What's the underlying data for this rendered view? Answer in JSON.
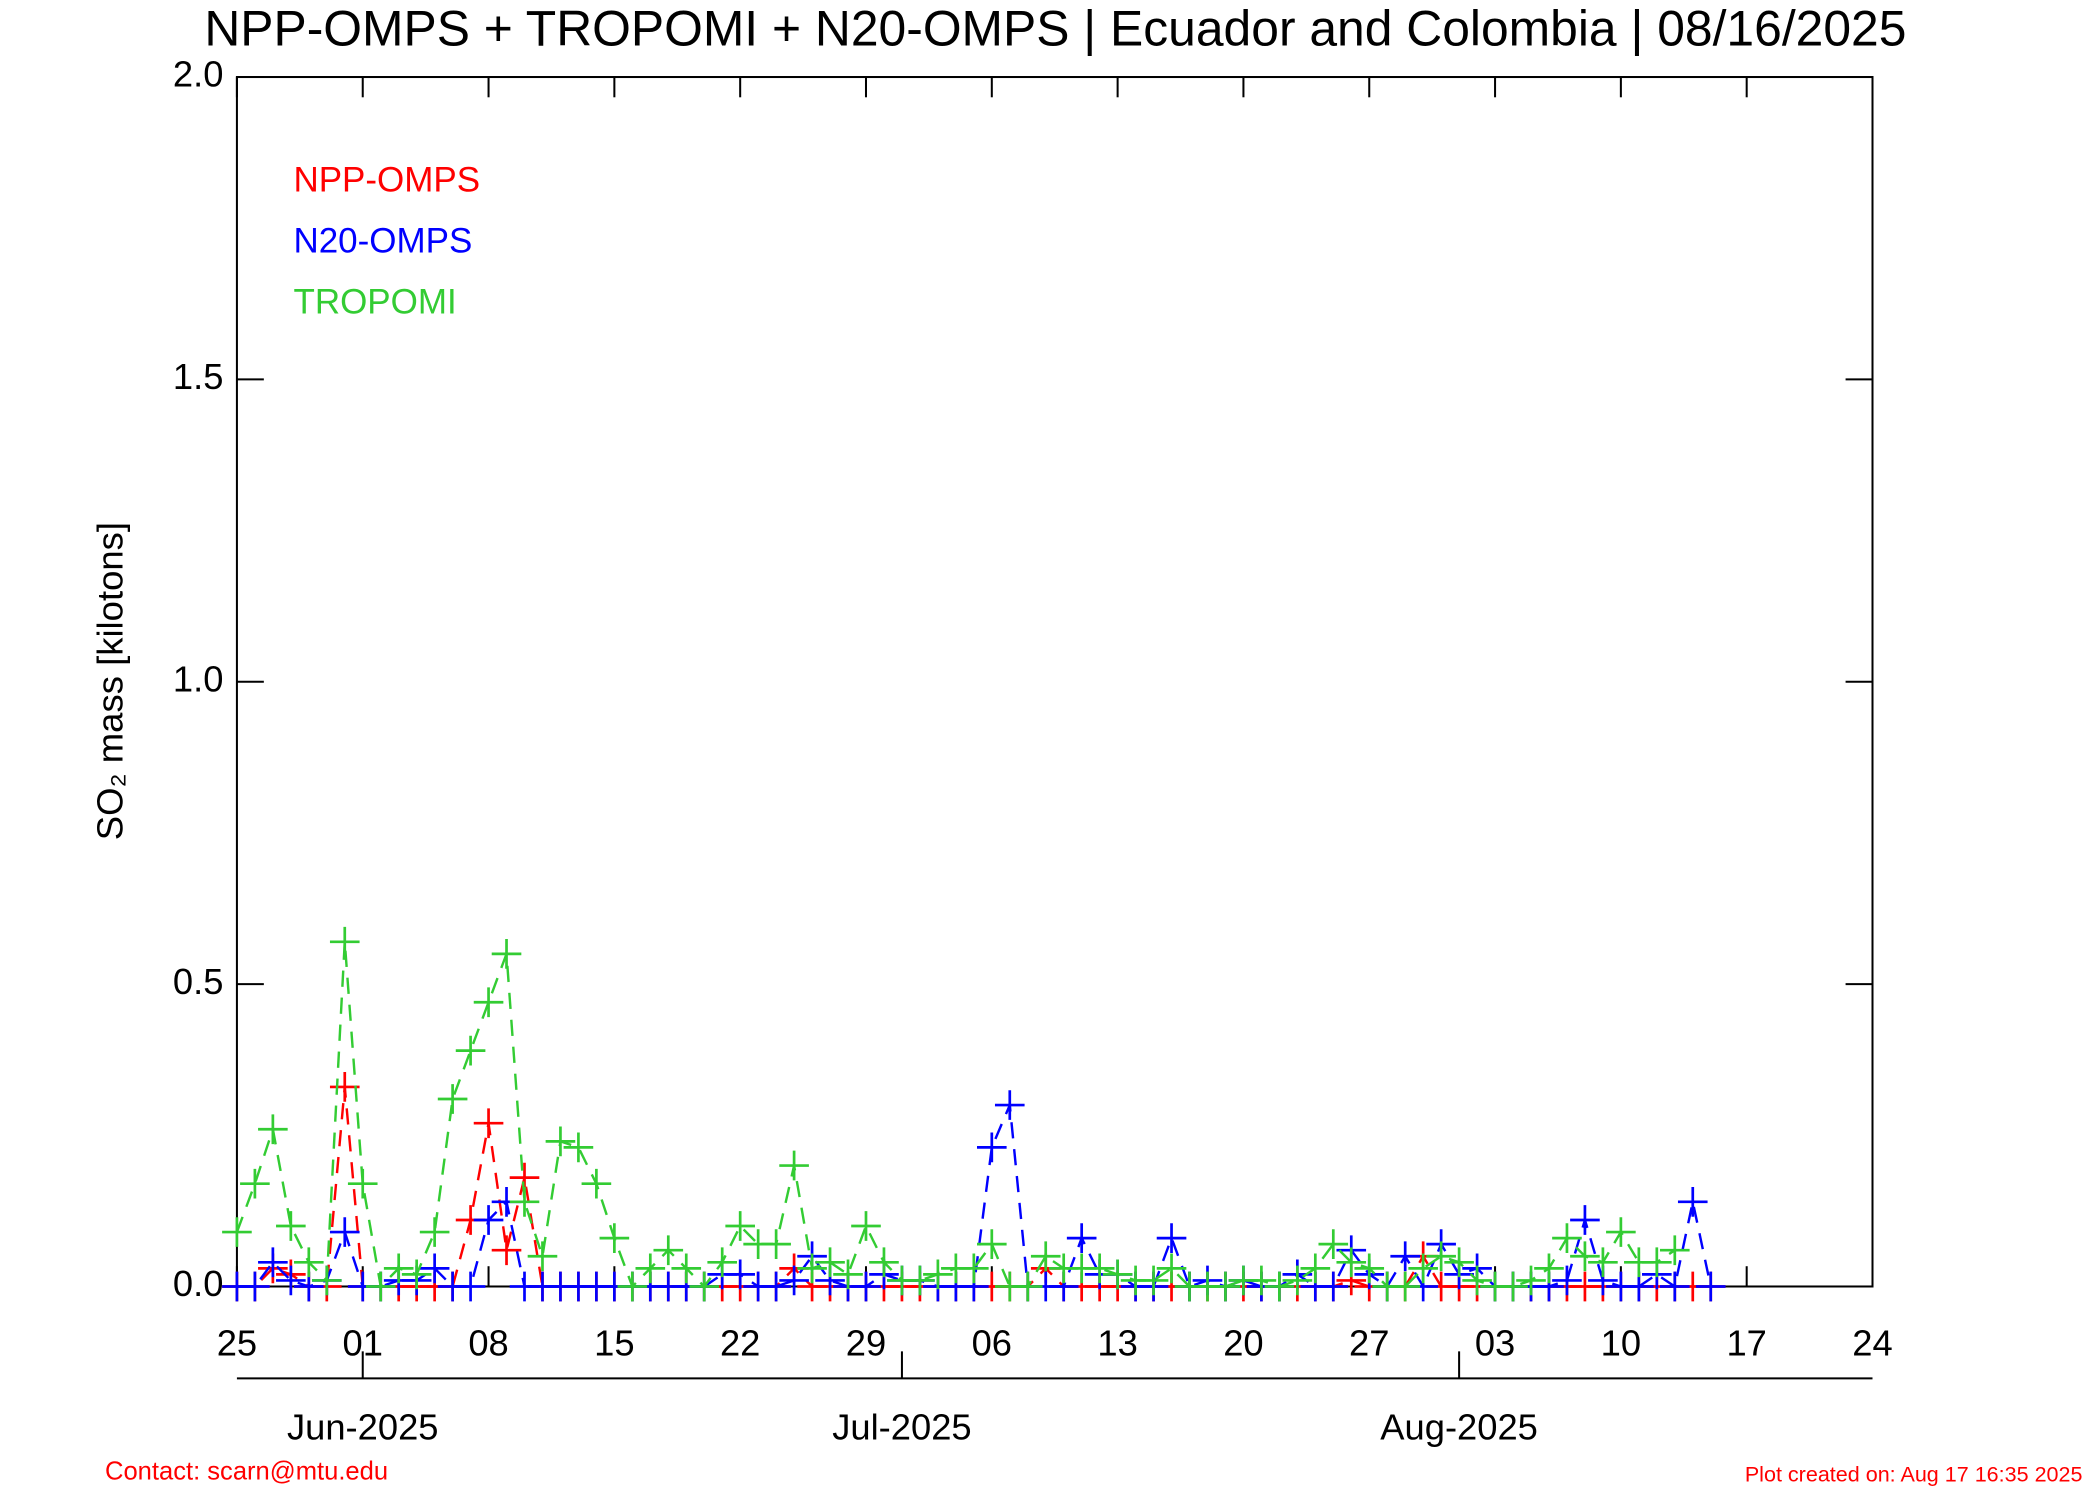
{
  "chart_data": {
    "type": "line",
    "title": "NPP-OMPS + TROPOMI + N20-OMPS | Ecuador and Colombia | 08/16/2025",
    "y_label": "SO₂ mass [kilotons]",
    "x": [
      "2025-05-25",
      "2025-05-26",
      "2025-05-27",
      "2025-05-28",
      "2025-05-29",
      "2025-05-30",
      "2025-05-31",
      "2025-06-01",
      "2025-06-02",
      "2025-06-03",
      "2025-06-04",
      "2025-06-05",
      "2025-06-06",
      "2025-06-07",
      "2025-06-08",
      "2025-06-09",
      "2025-06-10",
      "2025-06-11",
      "2025-06-12",
      "2025-06-13",
      "2025-06-14",
      "2025-06-15",
      "2025-06-16",
      "2025-06-17",
      "2025-06-18",
      "2025-06-19",
      "2025-06-20",
      "2025-06-21",
      "2025-06-22",
      "2025-06-23",
      "2025-06-24",
      "2025-06-25",
      "2025-06-26",
      "2025-06-27",
      "2025-06-28",
      "2025-06-29",
      "2025-06-30",
      "2025-07-01",
      "2025-07-02",
      "2025-07-03",
      "2025-07-04",
      "2025-07-05",
      "2025-07-06",
      "2025-07-07",
      "2025-07-08",
      "2025-07-09",
      "2025-07-10",
      "2025-07-11",
      "2025-07-12",
      "2025-07-13",
      "2025-07-14",
      "2025-07-15",
      "2025-07-16",
      "2025-07-17",
      "2025-07-18",
      "2025-07-19",
      "2025-07-20",
      "2025-07-21",
      "2025-07-22",
      "2025-07-23",
      "2025-07-24",
      "2025-07-25",
      "2025-07-26",
      "2025-07-27",
      "2025-07-28",
      "2025-07-29",
      "2025-07-30",
      "2025-07-31",
      "2025-08-01",
      "2025-08-02",
      "2025-08-03",
      "2025-08-04",
      "2025-08-05",
      "2025-08-06",
      "2025-08-07",
      "2025-08-08",
      "2025-08-09",
      "2025-08-10",
      "2025-08-11",
      "2025-08-12",
      "2025-08-13",
      "2025-08-14",
      "2025-08-15"
    ],
    "series": [
      {
        "name": "NPP-OMPS",
        "color": "#ff0000",
        "values": [
          0,
          0,
          0.03,
          0.02,
          0,
          0,
          0.33,
          0,
          0,
          0,
          0,
          0,
          0,
          0.11,
          0.27,
          0.06,
          0.18,
          0,
          0,
          0,
          0,
          0,
          0,
          0,
          0,
          0,
          0,
          0,
          0,
          0,
          0,
          0.03,
          0,
          0,
          0,
          0,
          0,
          0,
          0,
          0,
          0,
          0,
          0,
          0,
          0,
          0.03,
          0,
          0,
          0,
          0,
          0,
          0,
          0,
          0,
          0,
          0,
          0,
          0,
          0,
          0,
          0,
          0,
          0.01,
          0,
          0,
          0,
          0.05,
          0,
          0,
          0,
          0,
          0,
          0,
          0,
          0,
          0,
          0,
          0,
          0,
          0,
          0,
          0,
          0
        ]
      },
      {
        "name": "N20-OMPS",
        "color": "#0000ff",
        "values": [
          0,
          0,
          0.04,
          0.01,
          0,
          0.01,
          0.09,
          0,
          0,
          0.01,
          0.01,
          0.03,
          0,
          0,
          0.11,
          0.14,
          0,
          0,
          0,
          0,
          0,
          0,
          0,
          0,
          0,
          0,
          0,
          0.02,
          0.02,
          0,
          0,
          0.01,
          0.05,
          0.01,
          0,
          0,
          0.02,
          0.01,
          0.01,
          0,
          0,
          0,
          0.23,
          0.3,
          0,
          0,
          0,
          0.08,
          0.02,
          0.02,
          0,
          0,
          0.08,
          0,
          0.01,
          0,
          0.01,
          0,
          0,
          0.02,
          0,
          0,
          0.06,
          0.02,
          0,
          0.05,
          0,
          0.07,
          0.02,
          0.03,
          0,
          0,
          0,
          0,
          0.01,
          0.11,
          0.01,
          0,
          0,
          0.02,
          0,
          0.14,
          0
        ]
      },
      {
        "name": "TROPOMI",
        "color": "#33cc33",
        "values": [
          0.09,
          0.17,
          0.26,
          0.1,
          0.04,
          0.01,
          0.57,
          0.17,
          0,
          0.03,
          0.02,
          0.09,
          0.31,
          0.39,
          0.47,
          0.55,
          0.14,
          0.05,
          0.24,
          0.23,
          0.17,
          0.08,
          0,
          0.03,
          0.06,
          0.03,
          0,
          0.04,
          0.1,
          0.07,
          0.07,
          0.2,
          0.03,
          0.04,
          0.02,
          0.1,
          0.04,
          0.01,
          0.01,
          0.02,
          0.03,
          0.03,
          0.07,
          0,
          0,
          0.05,
          0.03,
          0.03,
          0.03,
          0.02,
          0.01,
          0.01,
          0.03,
          0,
          0,
          0,
          0.01,
          0.01,
          0,
          0.01,
          0.03,
          0.07,
          0.04,
          0.03,
          0,
          0,
          0.03,
          0.05,
          0.04,
          0.01,
          0,
          0,
          0.01,
          0.03,
          0.08,
          0.05,
          0.04,
          0.09,
          0.04,
          0.04,
          0.06,
          null,
          null
        ]
      }
    ],
    "xlim": [
      "2025-05-25",
      "2025-08-24"
    ],
    "xticks": [
      {
        "value": "2025-05-25",
        "label": "25"
      },
      {
        "value": "2025-06-01",
        "label": "01"
      },
      {
        "value": "2025-06-08",
        "label": "08"
      },
      {
        "value": "2025-06-15",
        "label": "15"
      },
      {
        "value": "2025-06-22",
        "label": "22"
      },
      {
        "value": "2025-06-29",
        "label": "29"
      },
      {
        "value": "2025-07-06",
        "label": "06"
      },
      {
        "value": "2025-07-13",
        "label": "13"
      },
      {
        "value": "2025-07-20",
        "label": "20"
      },
      {
        "value": "2025-07-27",
        "label": "27"
      },
      {
        "value": "2025-08-03",
        "label": "03"
      },
      {
        "value": "2025-08-10",
        "label": "10"
      },
      {
        "value": "2025-08-17",
        "label": "17"
      },
      {
        "value": "2025-08-24",
        "label": "24"
      }
    ],
    "month_ticks": [
      {
        "value": "2025-06-01",
        "label": "Jun-2025"
      },
      {
        "value": "2025-07-01",
        "label": "Jul-2025"
      },
      {
        "value": "2025-08-01",
        "label": "Aug-2025"
      }
    ],
    "ylim": [
      0,
      2
    ],
    "yticks": [
      {
        "value": 0,
        "label": "0.0"
      },
      {
        "value": 0.5,
        "label": "0.5"
      },
      {
        "value": 1,
        "label": "1.0"
      },
      {
        "value": 1.5,
        "label": "1.5"
      },
      {
        "value": 2,
        "label": "2.0"
      }
    ],
    "legend": "upper left",
    "contact": "Contact: scarn@mtu.edu",
    "created": "Plot created on: Aug 17 16:35 2025"
  }
}
